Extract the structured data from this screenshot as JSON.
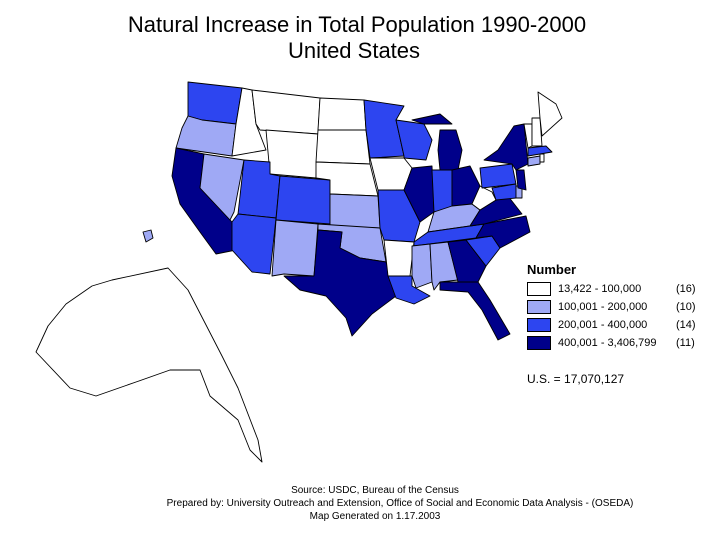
{
  "title": {
    "line1": "Natural Increase in Total Population 1990-2000",
    "line2": "United States"
  },
  "legend": {
    "heading": "Number",
    "classes": [
      {
        "range": "13,422 - 100,000",
        "count": "(16)",
        "color": "#ffffff"
      },
      {
        "range": "100,001 - 200,000",
        "count": "(10)",
        "color": "#9fa9f5"
      },
      {
        "range": "200,001 - 400,000",
        "count": "(14)",
        "color": "#2d45f0"
      },
      {
        "range": "400,001 - 3,406,799",
        "count": "(11)",
        "color": "#00008a"
      }
    ]
  },
  "us_total": "U.S. = 17,070,127",
  "footer": {
    "source": "Source:  USDC, Bureau of the Census",
    "prepared": "Prepared by:  University Outreach and Extension, Office of Social and Economic Data Analysis - (OSEDA)",
    "generated": "Map Generated on 1.17.2003"
  }
}
